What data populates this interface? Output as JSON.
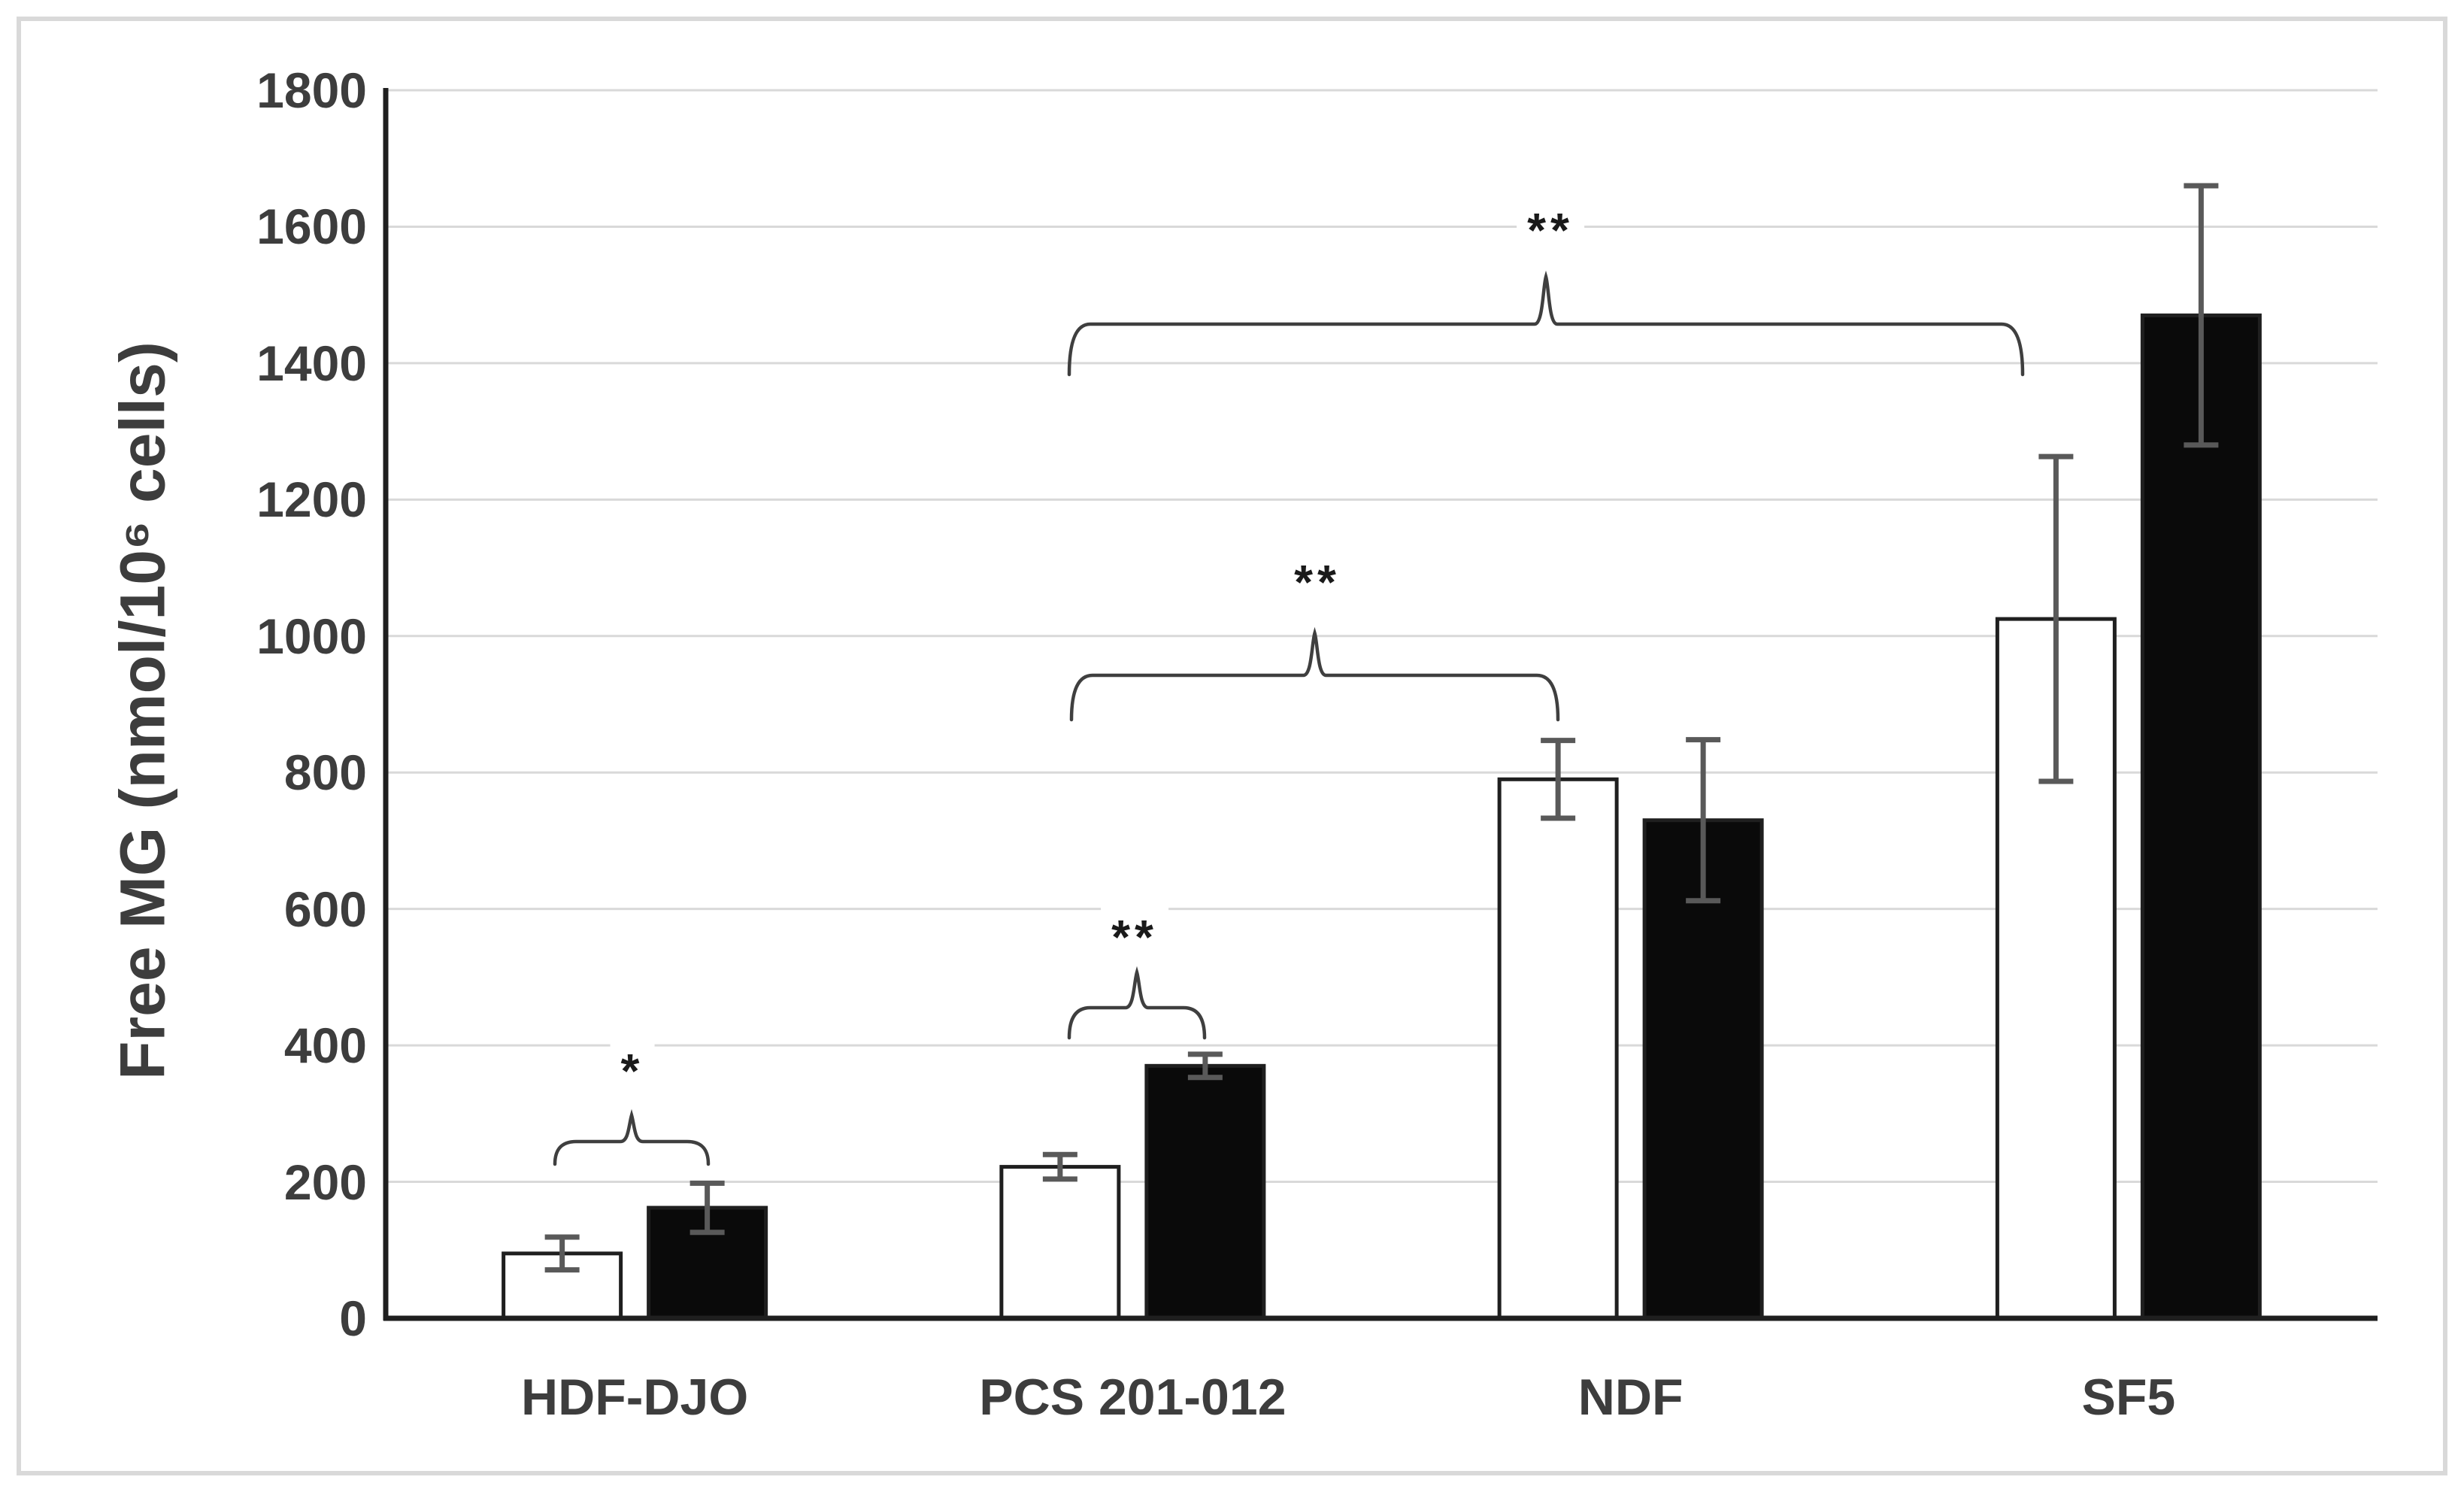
{
  "figure": {
    "background": "#ffffff",
    "border_color": "#d9d9d9"
  },
  "colors": {
    "axis": "#1f1f1f",
    "gridline": "#d9d9d9",
    "bar_open_fill": "#ffffff",
    "bar_filled_fill": "#0a0a0a",
    "bar_stroke": "#1f1f1f",
    "error_bar": "#595959",
    "bracket": "#3f3f3f",
    "text": "#3d3d3d",
    "annotation_text": "#1a1a1a"
  },
  "chart_data": {
    "type": "bar",
    "title": "",
    "ylabel": "Free MG (nmol/10⁶ cells)",
    "xlabel": "",
    "categories": [
      "HDF-DJO",
      "PCS 201-012",
      "NDF",
      "SF5"
    ],
    "series": [
      {
        "name": "open-white-bars",
        "values": [
          95,
          222,
          790,
          1025
        ],
        "errors": [
          24,
          18,
          57,
          238
        ]
      },
      {
        "name": "filled-black-bars",
        "values": [
          162,
          370,
          730,
          1470
        ],
        "errors": [
          36,
          17,
          118,
          190
        ]
      }
    ],
    "ylim": [
      0,
      1800
    ],
    "yticks": [
      0,
      200,
      400,
      600,
      800,
      1000,
      1200,
      1400,
      1600,
      1800
    ],
    "grid": true,
    "legend": false,
    "annotations": [
      {
        "label": "*",
        "x1": 738,
        "x2": 942,
        "y_line": 1518,
        "y_hook": 1548,
        "y_peak": 1483,
        "label_x": 841,
        "label_y": 1424,
        "y_value": 259
      },
      {
        "label": "**",
        "x1": 1422,
        "x2": 1602,
        "y_line": 1340,
        "y_hook": 1380,
        "y_peak": 1293,
        "label_x": 1509,
        "label_y": 1246,
        "y_value": 455
      },
      {
        "label": "**",
        "x1": 1425,
        "x2": 2072,
        "y_line": 898,
        "y_hook": 957,
        "y_peak": 842,
        "label_x": 1752,
        "label_y": 774,
        "y_value": 942
      },
      {
        "label": "**",
        "x1": 1422,
        "x2": 2690,
        "y_line": 431,
        "y_hook": 498,
        "y_peak": 368,
        "label_x": 2062,
        "label_y": 306,
        "y_value": 1457
      }
    ]
  }
}
